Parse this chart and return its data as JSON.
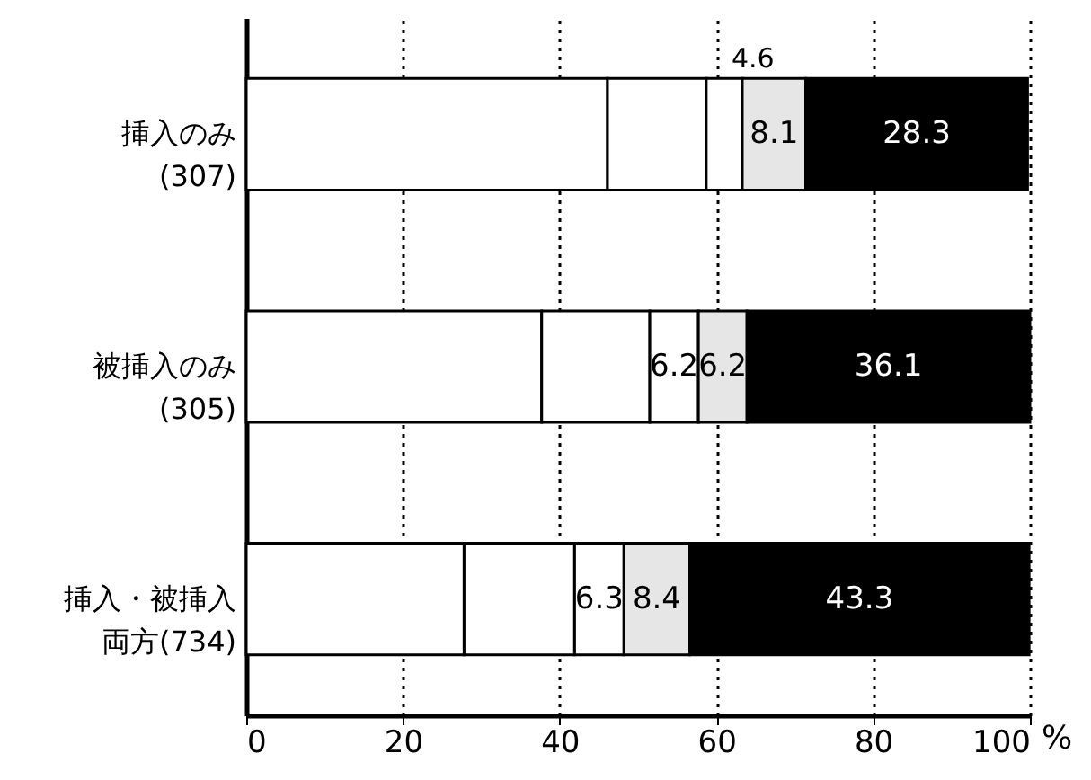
{
  "chart_data": {
    "type": "bar",
    "orientation": "horizontal",
    "stacked": true,
    "categories": [
      "挿入のみ(307)",
      "被挿入のみ(305)",
      "挿入・被挿入両方(734)"
    ],
    "series": [
      {
        "color": "#ffffff",
        "values": [
          46.1,
          37.7,
          27.8
        ]
      },
      {
        "color": "#ffffff",
        "values": [
          12.6,
          13.8,
          14.1
        ]
      },
      {
        "color": "#ffffff",
        "values": [
          4.6,
          6.2,
          6.3
        ],
        "value_labels": [
          "4.6",
          "6.2",
          "6.3"
        ]
      },
      {
        "color": "#e6e6e6",
        "values": [
          8.1,
          6.2,
          8.4
        ],
        "value_labels": [
          "8.1",
          "6.2",
          "8.4"
        ]
      },
      {
        "color": "#000000",
        "values": [
          28.3,
          36.1,
          43.3
        ],
        "value_labels": [
          "28.3",
          "36.1",
          "43.3"
        ]
      }
    ],
    "xlabel": "%",
    "xlim": [
      0,
      100
    ],
    "xticks": [
      0,
      20,
      40,
      60,
      80,
      100
    ],
    "grid": "x"
  }
}
